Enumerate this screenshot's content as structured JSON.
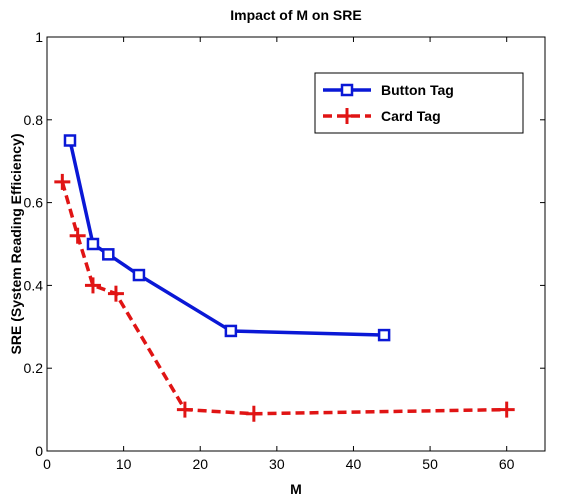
{
  "chart_data": {
    "type": "line",
    "title": "Impact of M on SRE",
    "xlabel": "M",
    "ylabel": "SRE (System Reading Efficiency)",
    "xlim": [
      0,
      65
    ],
    "ylim": [
      0,
      1
    ],
    "xticks": [
      0,
      10,
      20,
      30,
      40,
      50,
      60
    ],
    "yticks": [
      0,
      0.2,
      0.4,
      0.6,
      0.8,
      1
    ],
    "yticklabels": [
      "0",
      "0.2",
      "0.4",
      "0.6",
      "0.8",
      "1"
    ],
    "grid": false,
    "legend_position": "top-right",
    "series": [
      {
        "name": "Button Tag",
        "color": "#0a18d6",
        "line_style": "solid",
        "marker": "square",
        "x": [
          3,
          6,
          8,
          12,
          24,
          44
        ],
        "y": [
          0.75,
          0.5,
          0.475,
          0.425,
          0.29,
          0.28
        ]
      },
      {
        "name": "Card Tag",
        "color": "#e01414",
        "line_style": "dashed",
        "marker": "plus",
        "x": [
          2,
          4,
          6,
          9,
          18,
          27,
          60
        ],
        "y": [
          0.65,
          0.52,
          0.4,
          0.38,
          0.1,
          0.09,
          0.1
        ]
      }
    ]
  }
}
